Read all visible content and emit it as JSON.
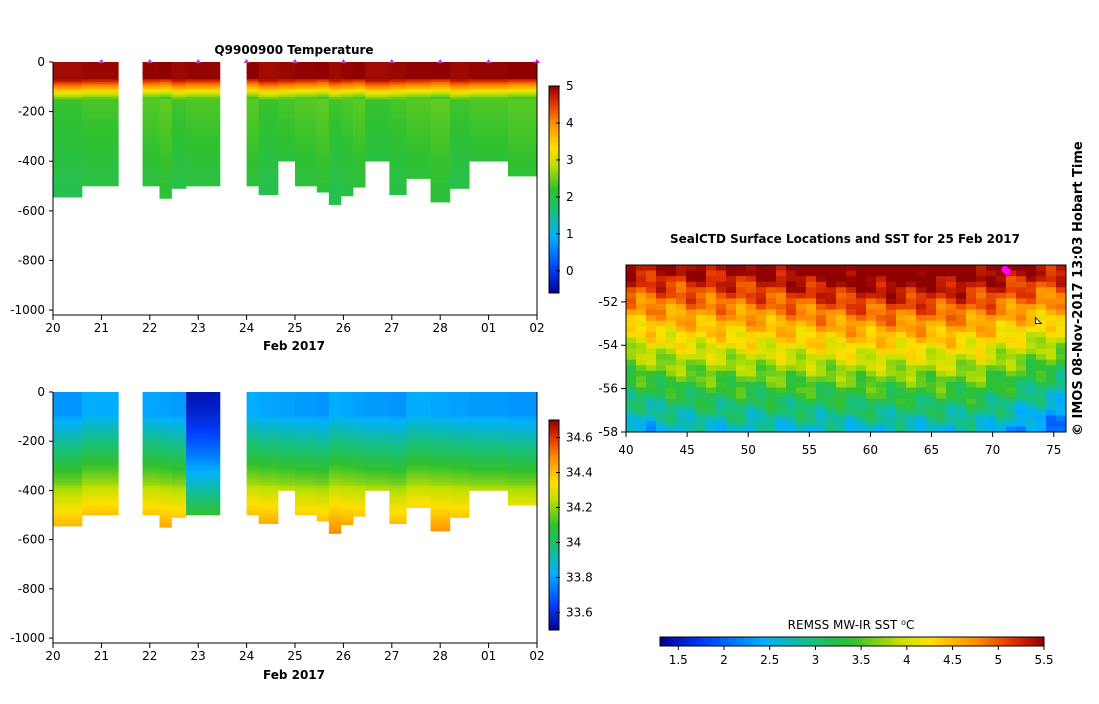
{
  "credit": "© IMOS 08-Nov-2017 13:03 Hobart Time",
  "chart_data": [
    {
      "type": "heatmap",
      "title": "Q9900900  Temperature",
      "xlabel": "Feb 2017",
      "ylabel": "",
      "x_tick_labels": [
        "20",
        "21",
        "22",
        "23",
        "24",
        "25",
        "26",
        "27",
        "28",
        "01",
        "02"
      ],
      "x_range": [
        0,
        10
      ],
      "y_ticks": [
        0,
        -200,
        -400,
        -600,
        -800,
        -1000
      ],
      "y_range": [
        -1020,
        0
      ],
      "colorbar": {
        "min": -0.6,
        "max": 5,
        "ticks": [
          0,
          1,
          2,
          3,
          4,
          5
        ]
      },
      "variable": "temperature",
      "profile_markers_x": [
        1,
        2,
        3,
        4,
        5,
        6,
        7,
        8,
        9,
        10
      ],
      "profiles": [
        {
          "x0": 0.0,
          "x1": 0.6,
          "max_depth": 545
        },
        {
          "x0": 0.6,
          "x1": 1.35,
          "max_depth": 500
        },
        {
          "x0": 1.85,
          "x1": 2.2,
          "max_depth": 500
        },
        {
          "x0": 2.2,
          "x1": 2.45,
          "max_depth": 550
        },
        {
          "x0": 2.45,
          "x1": 2.75,
          "max_depth": 510
        },
        {
          "x0": 2.75,
          "x1": 3.45,
          "max_depth": 500
        },
        {
          "x0": 4.0,
          "x1": 4.25,
          "max_depth": 500
        },
        {
          "x0": 4.25,
          "x1": 4.65,
          "max_depth": 535
        },
        {
          "x0": 4.65,
          "x1": 5.0,
          "max_depth": 400
        },
        {
          "x0": 5.0,
          "x1": 5.45,
          "max_depth": 500
        },
        {
          "x0": 5.45,
          "x1": 5.7,
          "max_depth": 525
        },
        {
          "x0": 5.7,
          "x1": 5.95,
          "max_depth": 575
        },
        {
          "x0": 5.95,
          "x1": 6.2,
          "max_depth": 540
        },
        {
          "x0": 6.2,
          "x1": 6.45,
          "max_depth": 505
        },
        {
          "x0": 6.45,
          "x1": 6.95,
          "max_depth": 400
        },
        {
          "x0": 6.95,
          "x1": 7.3,
          "max_depth": 535
        },
        {
          "x0": 7.3,
          "x1": 7.8,
          "max_depth": 470
        },
        {
          "x0": 7.8,
          "x1": 8.2,
          "max_depth": 565
        },
        {
          "x0": 8.2,
          "x1": 8.6,
          "max_depth": 510
        },
        {
          "x0": 8.6,
          "x1": 9.4,
          "max_depth": 400
        },
        {
          "x0": 9.4,
          "x1": 10.0,
          "max_depth": 460
        }
      ]
    },
    {
      "type": "heatmap",
      "title": "",
      "xlabel": "Feb 2017",
      "ylabel": "",
      "x_tick_labels": [
        "20",
        "21",
        "22",
        "23",
        "24",
        "25",
        "26",
        "27",
        "28",
        "01",
        "02"
      ],
      "x_range": [
        0,
        10
      ],
      "y_ticks": [
        0,
        -200,
        -400,
        -600,
        -800,
        -1000
      ],
      "y_range": [
        -1020,
        0
      ],
      "colorbar": {
        "min": 33.5,
        "max": 34.7,
        "ticks": [
          33.6,
          33.8,
          34,
          34.2,
          34.4,
          34.6
        ]
      },
      "variable": "salinity",
      "fresh_profile_x": [
        2.75,
        3.45
      ],
      "profiles": [
        {
          "x0": 0.0,
          "x1": 0.6,
          "max_depth": 545
        },
        {
          "x0": 0.6,
          "x1": 1.35,
          "max_depth": 500
        },
        {
          "x0": 1.85,
          "x1": 2.2,
          "max_depth": 500
        },
        {
          "x0": 2.2,
          "x1": 2.45,
          "max_depth": 550
        },
        {
          "x0": 2.45,
          "x1": 2.75,
          "max_depth": 510
        },
        {
          "x0": 2.75,
          "x1": 3.45,
          "max_depth": 500
        },
        {
          "x0": 4.0,
          "x1": 4.25,
          "max_depth": 500
        },
        {
          "x0": 4.25,
          "x1": 4.65,
          "max_depth": 535
        },
        {
          "x0": 4.65,
          "x1": 5.0,
          "max_depth": 400
        },
        {
          "x0": 5.0,
          "x1": 5.45,
          "max_depth": 500
        },
        {
          "x0": 5.45,
          "x1": 5.7,
          "max_depth": 525
        },
        {
          "x0": 5.7,
          "x1": 5.95,
          "max_depth": 575
        },
        {
          "x0": 5.95,
          "x1": 6.2,
          "max_depth": 540
        },
        {
          "x0": 6.2,
          "x1": 6.45,
          "max_depth": 505
        },
        {
          "x0": 6.45,
          "x1": 6.95,
          "max_depth": 400
        },
        {
          "x0": 6.95,
          "x1": 7.3,
          "max_depth": 535
        },
        {
          "x0": 7.3,
          "x1": 7.8,
          "max_depth": 470
        },
        {
          "x0": 7.8,
          "x1": 8.2,
          "max_depth": 565
        },
        {
          "x0": 8.2,
          "x1": 8.6,
          "max_depth": 510
        },
        {
          "x0": 8.6,
          "x1": 9.4,
          "max_depth": 400
        },
        {
          "x0": 9.4,
          "x1": 10.0,
          "max_depth": 460
        }
      ]
    },
    {
      "type": "heatmap",
      "title": "SealCTD Surface Locations and SST for 25 Feb 2017",
      "xlabel": "",
      "ylabel": "",
      "x_ticks": [
        40,
        45,
        50,
        55,
        60,
        65,
        70,
        75
      ],
      "x_range": [
        40,
        76
      ],
      "y_ticks": [
        -52,
        -54,
        -56,
        -58
      ],
      "y_range": [
        -58,
        -50.3
      ],
      "colorbar": {
        "label": "REMSS MW-IR SST ⁰C",
        "min": 1.3,
        "max": 5.5,
        "ticks": [
          1.5,
          2,
          2.5,
          3,
          3.5,
          4,
          4.5,
          5,
          5.5
        ]
      },
      "sst_model": "roughly 5.5 °C along the north edge, about 4.5 °C near -53°, 3.3–3.6 °C around -55°, falling to ~2 °C in the far south-east; warmest core near 55–70°E",
      "seal_surface_locations": [
        {
          "lon": 71.0,
          "lat": -50.5
        },
        {
          "lon": 71.2,
          "lat": -50.6
        }
      ],
      "track_start": {
        "lon": 73.5,
        "lat": -53.0
      }
    }
  ]
}
